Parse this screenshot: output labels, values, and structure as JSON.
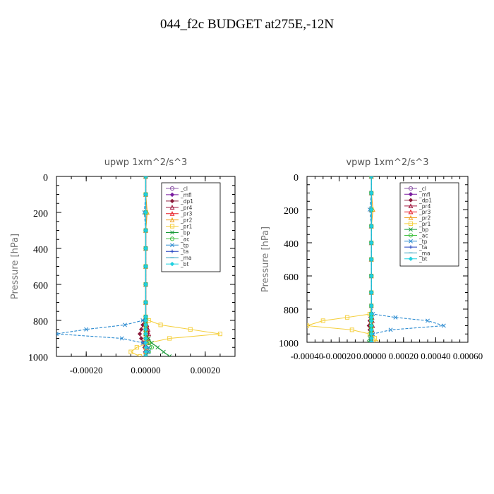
{
  "figure_title": "044_f2c  BUDGET at275E,-12N",
  "colors": {
    "_cl": "#8e5aa8",
    "_mfl": "#7a1ca0",
    "_dp1": "#8b1a3a",
    "_pr4": "#a0143c",
    "_pr3": "#e8202a",
    "_pr2": "#f0a020",
    "_pr1": "#f5d040",
    "_bp": "#1a9a3a",
    "_ac": "#40c040",
    "_tp": "#2a8ad0",
    "_ta": "#2040c0",
    "_ma": "#30a0c0",
    "_bt": "#20d0e0"
  },
  "chart_data": [
    {
      "type": "line",
      "title": "upwp   1xm^2/s^3",
      "ylabel": "Pressure [hPa]",
      "xlabel": "",
      "xlim": [
        -0.0003,
        0.0003
      ],
      "ylim": [
        1000,
        0
      ],
      "xticks": [
        -0.0002,
        0.0,
        0.0002
      ],
      "xtick_labels": [
        "-0.00020",
        "0.00000",
        "0.00020"
      ],
      "yticks": [
        0,
        200,
        400,
        600,
        800,
        1000
      ],
      "ytick_labels": [
        "0",
        "200",
        "400",
        "600",
        "800",
        "1000"
      ],
      "grid": false,
      "legend_placement": "top-right",
      "y": [
        0,
        100,
        200,
        300,
        400,
        500,
        600,
        700,
        780,
        800,
        825,
        850,
        875,
        900,
        925,
        950,
        975,
        1000
      ],
      "series": [
        {
          "name": "_cl",
          "marker": "circle",
          "values": [
            0,
            0,
            0,
            0,
            0,
            0,
            0,
            0,
            0,
            0,
            0,
            0,
            0,
            0,
            0,
            0,
            0,
            0
          ]
        },
        {
          "name": "_mfl",
          "marker": "diamond",
          "values": [
            0,
            0,
            0,
            0,
            0,
            0,
            0,
            0,
            0,
            0,
            0,
            0,
            0,
            0,
            0,
            0,
            0,
            0
          ]
        },
        {
          "name": "_dp1",
          "marker": "diamond",
          "values": [
            0,
            0,
            0,
            0,
            0,
            0,
            0,
            0,
            0,
            -5e-06,
            -1e-05,
            -1.5e-05,
            -2e-05,
            -1.5e-05,
            -8e-06,
            -4e-06,
            -2e-06,
            0
          ]
        },
        {
          "name": "_pr4",
          "marker": "triangle",
          "values": [
            0,
            0,
            0,
            0,
            0,
            0,
            0,
            0,
            0,
            0,
            4e-06,
            8e-06,
            1e-05,
            6e-06,
            4e-06,
            2e-06,
            0,
            0
          ]
        },
        {
          "name": "_pr3",
          "marker": "triangle",
          "values": [
            0,
            0,
            0,
            0,
            0,
            0,
            0,
            0,
            0,
            0,
            0,
            0,
            0,
            0,
            0,
            0,
            0,
            0
          ]
        },
        {
          "name": "_pr2",
          "marker": "triangle",
          "values": [
            0,
            0,
            5e-06,
            0,
            0,
            0,
            0,
            0,
            0,
            0,
            0,
            0,
            0,
            0,
            0,
            0,
            0,
            0
          ]
        },
        {
          "name": "_pr1",
          "marker": "square",
          "values": [
            0,
            0,
            0,
            0,
            0,
            0,
            0,
            0,
            0,
            1e-05,
            5e-05,
            0.00015,
            0.00025,
            8e-05,
            1e-05,
            -3e-05,
            -5e-05,
            -2e-05
          ]
        },
        {
          "name": "_bp",
          "marker": "x",
          "values": [
            0,
            0,
            0,
            0,
            0,
            0,
            0,
            0,
            0,
            0,
            0,
            0,
            0,
            1e-05,
            2e-05,
            4e-05,
            6e-05,
            8e-05
          ]
        },
        {
          "name": "_ac",
          "marker": "circle",
          "values": [
            0,
            0,
            0,
            0,
            0,
            0,
            0,
            0,
            0,
            0,
            0,
            0,
            0,
            0,
            1e-05,
            2e-05,
            1e-05,
            0
          ]
        },
        {
          "name": "_tp",
          "marker": "x",
          "values": [
            0,
            0,
            -5e-06,
            0,
            0,
            0,
            0,
            0,
            0,
            -1e-05,
            -7e-05,
            -0.0002,
            -0.0003,
            -8e-05,
            -1e-05,
            1e-05,
            1e-05,
            0
          ]
        },
        {
          "name": "_ta",
          "marker": "plus",
          "values": [
            0,
            0,
            0,
            0,
            0,
            0,
            0,
            0,
            0,
            0,
            0,
            0,
            0,
            0,
            0,
            0,
            0,
            0
          ]
        },
        {
          "name": "_ma",
          "marker": "dash",
          "values": [
            0,
            0,
            0,
            0,
            0,
            0,
            0,
            0,
            0,
            0,
            0,
            0,
            0,
            0,
            0,
            0,
            0,
            0
          ]
        },
        {
          "name": "_bt",
          "marker": "diamond",
          "values": [
            0,
            0,
            0,
            0,
            0,
            0,
            0,
            0,
            0,
            0,
            0,
            0,
            0,
            0,
            0,
            0,
            0,
            0
          ]
        }
      ]
    },
    {
      "type": "line",
      "title": "vpwp   1xm^2/s^3",
      "ylabel": "Pressure [hPa]",
      "xlabel": "",
      "xlim": [
        -0.0004,
        0.0006
      ],
      "ylim": [
        1000,
        0
      ],
      "xticks": [
        -0.0004,
        -0.0002,
        0.0,
        0.0002,
        0.0004,
        0.0006
      ],
      "xtick_labels": [
        "-0.00040",
        "-0.00020",
        "0.00000",
        "0.00020",
        "0.00040",
        "0.00060"
      ],
      "yticks": [
        0,
        200,
        400,
        600,
        800,
        1000
      ],
      "ytick_labels": [
        "0",
        "200",
        "400",
        "600",
        "800",
        "1000"
      ],
      "grid": false,
      "legend_placement": "top-right",
      "y": [
        0,
        100,
        200,
        300,
        400,
        500,
        600,
        700,
        780,
        830,
        850,
        870,
        900,
        925,
        950,
        975,
        1000
      ],
      "series": [
        {
          "name": "_cl",
          "marker": "circle",
          "values": [
            0,
            0,
            0,
            0,
            0,
            0,
            0,
            0,
            0,
            0,
            0,
            0,
            0,
            0,
            0,
            0,
            0
          ]
        },
        {
          "name": "_mfl",
          "marker": "diamond",
          "values": [
            0,
            0,
            0,
            0,
            0,
            0,
            0,
            0,
            0,
            0,
            0,
            0,
            0,
            0,
            0,
            0,
            0
          ]
        },
        {
          "name": "_dp1",
          "marker": "diamond",
          "values": [
            0,
            0,
            0,
            0,
            0,
            0,
            0,
            0,
            0,
            0,
            -5e-06,
            -1e-05,
            -1.5e-05,
            -1e-05,
            -5e-06,
            0,
            0
          ]
        },
        {
          "name": "_pr4",
          "marker": "triangle",
          "values": [
            0,
            0,
            0,
            0,
            0,
            0,
            0,
            0,
            0,
            0,
            4e-06,
            6e-06,
            8e-06,
            4e-06,
            2e-06,
            0,
            0
          ]
        },
        {
          "name": "_pr3",
          "marker": "triangle",
          "values": [
            0,
            0,
            0,
            0,
            0,
            0,
            0,
            0,
            0,
            0,
            0,
            0,
            0,
            0,
            0,
            0,
            0
          ]
        },
        {
          "name": "_pr2",
          "marker": "triangle",
          "values": [
            0,
            0,
            1e-05,
            0,
            0,
            0,
            0,
            0,
            0,
            0,
            0,
            0,
            0,
            0,
            0,
            0,
            0
          ]
        },
        {
          "name": "_pr1",
          "marker": "square",
          "values": [
            0,
            0,
            0,
            0,
            0,
            0,
            0,
            0,
            0,
            -1e-05,
            -0.00015,
            -0.0003,
            -0.0004,
            -0.00012,
            -1e-05,
            2e-05,
            3e-05
          ]
        },
        {
          "name": "_bp",
          "marker": "x",
          "values": [
            0,
            0,
            0,
            0,
            0,
            0,
            0,
            0,
            0,
            0,
            0,
            0,
            0,
            0,
            -5e-06,
            -1e-05,
            -1.5e-05
          ]
        },
        {
          "name": "_ac",
          "marker": "circle",
          "values": [
            0,
            0,
            0,
            0,
            0,
            0,
            0,
            0,
            0,
            0,
            0,
            0,
            0,
            0,
            0,
            0,
            0
          ]
        },
        {
          "name": "_tp",
          "marker": "x",
          "values": [
            0,
            0,
            -1e-05,
            0,
            0,
            0,
            0,
            0,
            0,
            1e-05,
            0.00015,
            0.00035,
            0.00045,
            0.00012,
            1e-05,
            0,
            0
          ]
        },
        {
          "name": "_ta",
          "marker": "plus",
          "values": [
            0,
            0,
            0,
            0,
            0,
            0,
            0,
            0,
            0,
            0,
            0,
            0,
            0,
            0,
            0,
            0,
            0
          ]
        },
        {
          "name": "_ma",
          "marker": "dash",
          "values": [
            0,
            0,
            0,
            0,
            0,
            0,
            0,
            0,
            0,
            0,
            0,
            0,
            0,
            0,
            0,
            0,
            0
          ]
        },
        {
          "name": "_bt",
          "marker": "diamond",
          "values": [
            0,
            0,
            0,
            0,
            0,
            0,
            0,
            0,
            0,
            0,
            0,
            0,
            0,
            0,
            0,
            0,
            0
          ]
        }
      ]
    }
  ]
}
